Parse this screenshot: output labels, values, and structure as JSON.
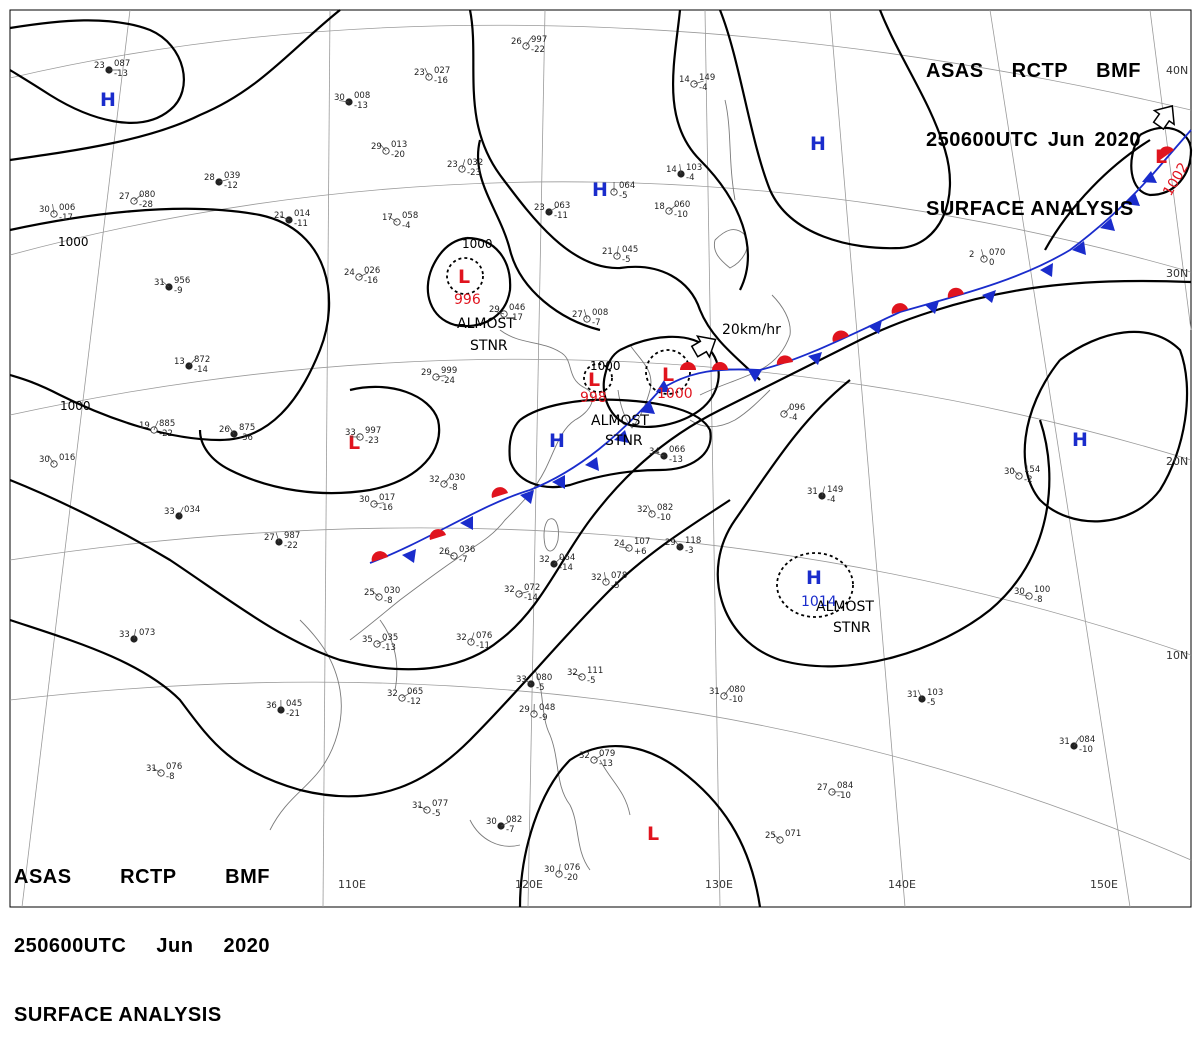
{
  "header": {
    "line1": [
      "ASAS",
      "RCTP",
      "BMF"
    ],
    "line2": [
      "250600UTC",
      "Jun",
      "2020"
    ],
    "line3": "SURFACE ANALYSIS"
  },
  "lon_labels": [
    "110E",
    "120E",
    "130E",
    "140E",
    "150E"
  ],
  "lat_labels": [
    "40N",
    "30N",
    "20N",
    "10N"
  ],
  "isobar_labels": [
    "1000",
    "1000",
    "1000",
    "1000"
  ],
  "centers": [
    {
      "type": "H",
      "color": "#1a2ccc"
    },
    {
      "type": "H",
      "color": "#1a2ccc"
    },
    {
      "type": "H",
      "color": "#1a2ccc"
    },
    {
      "type": "H",
      "color": "#1a2ccc"
    },
    {
      "type": "H",
      "color": "#1a2ccc"
    },
    {
      "type": "H",
      "color": "#1a2ccc",
      "value": "1014"
    },
    {
      "type": "L",
      "color": "#e0141e",
      "value": "996"
    },
    {
      "type": "L",
      "color": "#e0141e",
      "value": "998"
    },
    {
      "type": "L",
      "color": "#e0141e",
      "value": "1000"
    },
    {
      "type": "L",
      "color": "#e0141e",
      "value": "1002"
    },
    {
      "type": "L",
      "color": "#e0141e"
    },
    {
      "type": "L",
      "color": "#e0141e"
    }
  ],
  "annotations": {
    "stnr_1": [
      "ALMOST",
      "STNR"
    ],
    "stnr_2": [
      "ALMOST",
      "STNR"
    ],
    "stnr_3": [
      "ALMOST",
      "STNR"
    ],
    "motion": "20km/hr"
  },
  "stations": [
    {
      "t": "23",
      "p": "087",
      "d": "-13"
    },
    {
      "t": "26",
      "p": "997",
      "d": "-22"
    },
    {
      "t": "23",
      "p": "027",
      "d": "-16"
    },
    {
      "t": "30",
      "p": "008",
      "d": "-13"
    },
    {
      "t": "29",
      "p": "013",
      "d": "-20"
    },
    {
      "t": "23",
      "p": "032",
      "d": "-23"
    },
    {
      "t": "28",
      "p": "039",
      "d": "-12"
    },
    {
      "t": "27",
      "p": "080",
      "d": "-28"
    },
    {
      "t": "30",
      "p": "006",
      "d": "-17"
    },
    {
      "t": "21",
      "p": "014",
      "d": "-11"
    },
    {
      "t": "17",
      "p": "058",
      "d": "-4"
    },
    {
      "t": "",
      "p": "064",
      "d": "-5"
    },
    {
      "t": "23",
      "p": "063",
      "d": "-11"
    },
    {
      "t": "24",
      "p": "026",
      "d": "-16"
    },
    {
      "t": "21",
      "p": "045",
      "d": "-5"
    },
    {
      "t": "31",
      "p": "956",
      "d": "-9"
    },
    {
      "t": "29",
      "p": "046",
      "d": "-17"
    },
    {
      "t": "27",
      "p": "008",
      "d": "-7"
    },
    {
      "t": "13",
      "p": "872",
      "d": "-14"
    },
    {
      "t": "29",
      "p": "999",
      "d": "-24"
    },
    {
      "t": "19",
      "p": "885",
      "d": "-22"
    },
    {
      "t": "26",
      "p": "875",
      "d": "-36"
    },
    {
      "t": "33",
      "p": "997",
      "d": "-23"
    },
    {
      "t": "30",
      "p": "016",
      "d": ""
    },
    {
      "t": "33",
      "p": "034",
      "d": ""
    },
    {
      "t": "30",
      "p": "017",
      "d": "-16"
    },
    {
      "t": "32",
      "p": "030",
      "d": "-8"
    },
    {
      "t": "27",
      "p": "987",
      "d": "-22"
    },
    {
      "t": "26",
      "p": "036",
      "d": "-7"
    },
    {
      "t": "25",
      "p": "030",
      "d": "-8"
    },
    {
      "t": "33",
      "p": "073",
      "d": ""
    },
    {
      "t": "35",
      "p": "035",
      "d": "-13"
    },
    {
      "t": "32",
      "p": "065",
      "d": "-12"
    },
    {
      "t": "36",
      "p": "045",
      "d": "-21"
    },
    {
      "t": "31",
      "p": "076",
      "d": "-8"
    },
    {
      "t": "31",
      "p": "077",
      "d": "-5"
    },
    {
      "t": "14",
      "p": "103",
      "d": "-4"
    },
    {
      "t": "18",
      "p": "060",
      "d": "-10"
    },
    {
      "t": "14",
      "p": "149",
      "d": "-4"
    },
    {
      "t": "31",
      "p": "149",
      "d": "-4"
    },
    {
      "t": "30",
      "p": "154",
      "d": "-2"
    },
    {
      "t": "30",
      "p": "100",
      "d": "-8"
    },
    {
      "t": "31",
      "p": "103",
      "d": "-5"
    },
    {
      "t": "31",
      "p": "080",
      "d": "-10"
    },
    {
      "t": "27",
      "p": "084",
      "d": "-10"
    },
    {
      "t": "31",
      "p": "084",
      "d": "-10"
    },
    {
      "t": "32",
      "p": "082",
      "d": "-10"
    },
    {
      "t": "24",
      "p": "107",
      "d": "+6"
    },
    {
      "t": "29",
      "p": "118",
      "d": "-3"
    },
    {
      "t": "32",
      "p": "076",
      "d": "-11"
    },
    {
      "t": "32",
      "p": "072",
      "d": "-14"
    },
    {
      "t": "32",
      "p": "064",
      "d": "-14"
    },
    {
      "t": "32",
      "p": "078",
      "d": "-5"
    },
    {
      "t": "32",
      "p": "111",
      "d": "-5"
    },
    {
      "t": "33",
      "p": "080",
      "d": "-5"
    },
    {
      "t": "29",
      "p": "048",
      "d": "-9"
    },
    {
      "t": "32",
      "p": "079",
      "d": "-13"
    },
    {
      "t": "30",
      "p": "082",
      "d": "-7"
    },
    {
      "t": "30",
      "p": "076",
      "d": "-20"
    },
    {
      "t": "25",
      "p": "071",
      "d": ""
    },
    {
      "t": "34",
      "p": "066",
      "d": "-13"
    },
    {
      "t": "2",
      "p": "070",
      "d": "0"
    },
    {
      "t": "",
      "p": "096",
      "d": "-4"
    }
  ],
  "colors": {
    "high": "#1a2ccc",
    "low": "#e0141e",
    "front_warm": "#e0141e",
    "front_cold": "#1a2ccc"
  }
}
